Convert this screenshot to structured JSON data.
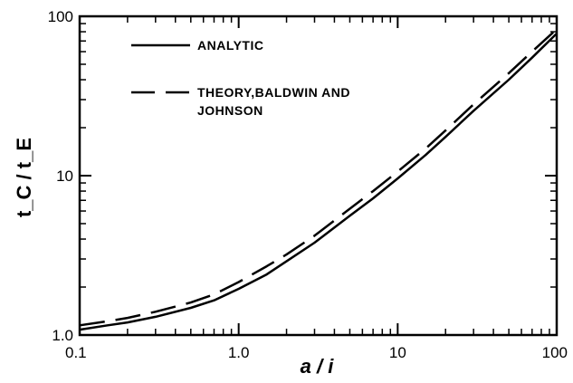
{
  "chart_data": {
    "type": "line",
    "xlabel": "a / i",
    "ylabel": "t_C / t_E",
    "x_scale": "log",
    "y_scale": "log",
    "xlim": [
      0.1,
      100
    ],
    "ylim": [
      1.0,
      100
    ],
    "x_ticks": [
      "0.1",
      "1.0",
      "10",
      "100"
    ],
    "y_ticks": [
      "1.0",
      "10",
      "100"
    ],
    "grid": false,
    "legend_placement": "top-left",
    "series": [
      {
        "name": "ANALYTIC",
        "style": "solid",
        "x": [
          0.1,
          0.15,
          0.2,
          0.3,
          0.5,
          0.7,
          1.0,
          1.5,
          2.0,
          3.0,
          5.0,
          7.0,
          10,
          15,
          20,
          30,
          50,
          70,
          100
        ],
        "y": [
          1.08,
          1.15,
          1.2,
          1.3,
          1.48,
          1.65,
          1.95,
          2.4,
          2.9,
          3.8,
          5.6,
          7.2,
          9.6,
          13.5,
          17.5,
          25.5,
          40,
          55,
          78
        ]
      },
      {
        "name": "THEORY, BALDWIN AND JOHNSON",
        "style": "dashed",
        "x": [
          0.1,
          0.15,
          0.2,
          0.3,
          0.5,
          0.7,
          1.0,
          1.5,
          2.0,
          3.0,
          5.0,
          7.0,
          10,
          15,
          20,
          30,
          50,
          70,
          100
        ],
        "y": [
          1.15,
          1.22,
          1.28,
          1.4,
          1.6,
          1.8,
          2.15,
          2.7,
          3.2,
          4.2,
          6.2,
          8.0,
          10.6,
          14.8,
          19.2,
          28,
          44,
          60,
          83
        ]
      }
    ],
    "legend": {
      "entries": [
        {
          "label_lines": [
            "ANALYTIC"
          ]
        },
        {
          "label_lines": [
            "THEORY,BALDWIN AND",
            "JOHNSON"
          ]
        }
      ]
    }
  }
}
